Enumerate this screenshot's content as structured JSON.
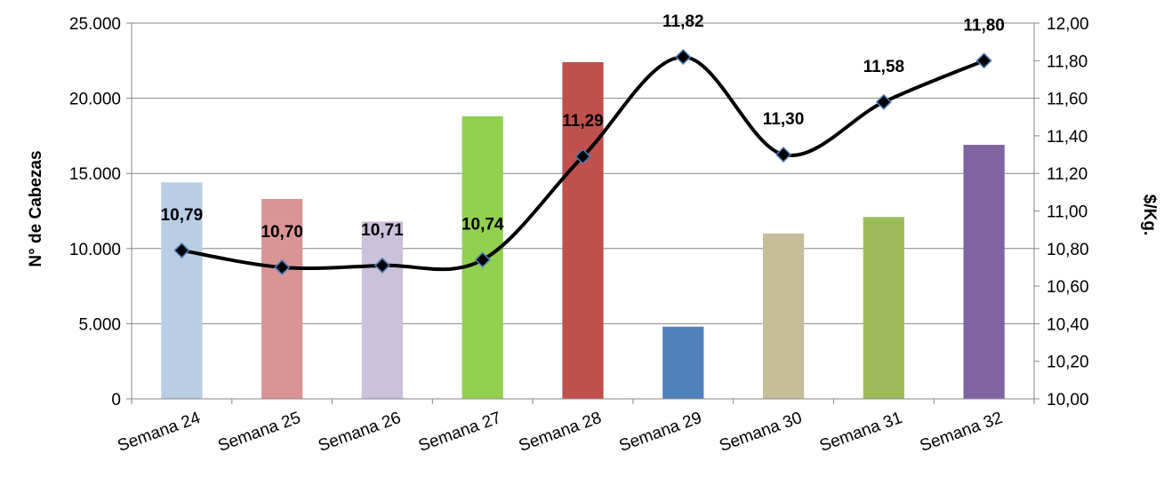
{
  "chart_data": {
    "type": "bar",
    "categories": [
      "Semana 24",
      "Semana 25",
      "Semana 26",
      "Semana 27",
      "Semana 28",
      "Semana 29",
      "Semana 30",
      "Semana 31",
      "Semana 32"
    ],
    "series": [
      {
        "type": "bar",
        "axis": "left",
        "values": [
          14400,
          13300,
          11800,
          18800,
          22400,
          4800,
          11000,
          12100,
          16900
        ],
        "colors": [
          "#b9cde5",
          "#d99594",
          "#ccc1da",
          "#92d050",
          "#c0504d",
          "#4f81bd",
          "#c4bd97",
          "#9bbb59",
          "#8064a2"
        ]
      },
      {
        "type": "line",
        "axis": "right",
        "smooth": true,
        "marker": "diamond",
        "color": "#000000",
        "values": [
          10.79,
          10.7,
          10.71,
          10.74,
          11.29,
          11.82,
          11.3,
          11.58,
          11.8
        ],
        "labels": [
          "10,79",
          "10,70",
          "10,71",
          "10,74",
          "11,29",
          "11,82",
          "11,30",
          "11,58",
          "11,80"
        ]
      }
    ],
    "ylabel": "N° de Cabezas",
    "ylabel2": "$/Kg.",
    "ylim": [
      0,
      25000
    ],
    "y2lim": [
      10.0,
      12.0
    ],
    "yticks": [
      "0",
      "5.000",
      "10.000",
      "15.000",
      "20.000",
      "25.000"
    ],
    "y2ticks": [
      "10,00",
      "10,20",
      "10,40",
      "10,60",
      "10,80",
      "11,00",
      "11,20",
      "11,40",
      "11,60",
      "11,80",
      "12,00"
    ],
    "grid": true,
    "legend": "none"
  }
}
